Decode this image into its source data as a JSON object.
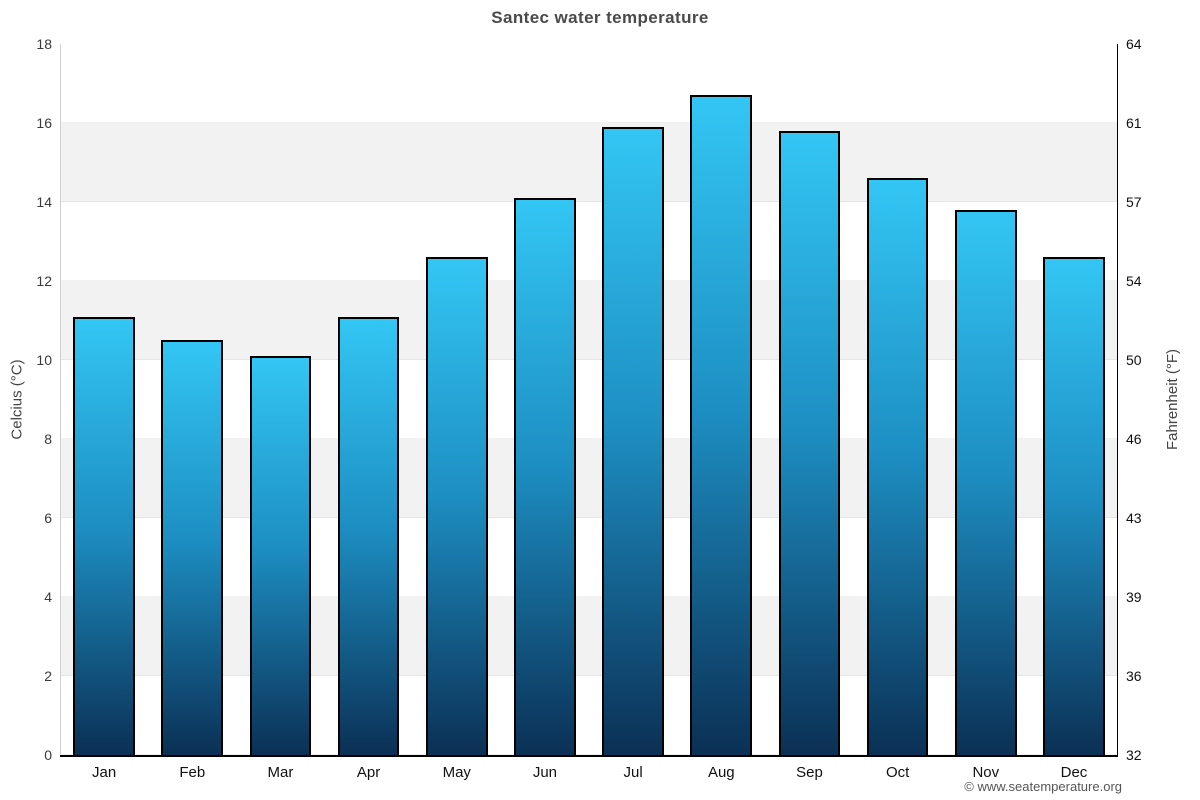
{
  "title": "Santec water temperature",
  "footer": {
    "credit": "© www.seatemperature.org"
  },
  "chart_data": {
    "type": "bar",
    "title": "Santec water temperature",
    "categories": [
      "Jan",
      "Feb",
      "Mar",
      "Apr",
      "May",
      "Jun",
      "Jul",
      "Aug",
      "Sep",
      "Oct",
      "Nov",
      "Dec"
    ],
    "values": [
      11.1,
      10.5,
      10.1,
      11.1,
      12.6,
      14.1,
      15.9,
      16.7,
      15.8,
      14.6,
      13.8,
      12.6
    ],
    "series_name": "Water temperature",
    "ylabel_left": "Celcius (°C)",
    "ylabel_right": "Fahrenheit (°F)",
    "ylim": [
      0,
      18
    ],
    "yticks_left": [
      0,
      2,
      4,
      6,
      8,
      10,
      12,
      14,
      16,
      18
    ],
    "yticks_right": [
      32,
      36,
      39,
      43,
      46,
      50,
      54,
      57,
      61,
      64
    ],
    "xlabel": "",
    "legend": false,
    "grid": "alternating horizontal bands every 2°C",
    "colors": {
      "bar_gradient_top": "#33c6f4",
      "bar_gradient_mid": "#1d8ec2",
      "bar_gradient_bottom": "#0b3055",
      "bar_border": "#000000",
      "band_white": "#ffffff",
      "band_gray": "#f2f2f2",
      "gridline": "rgba(0,0,0,0.055)",
      "title_color": "#4a4a4a"
    }
  }
}
